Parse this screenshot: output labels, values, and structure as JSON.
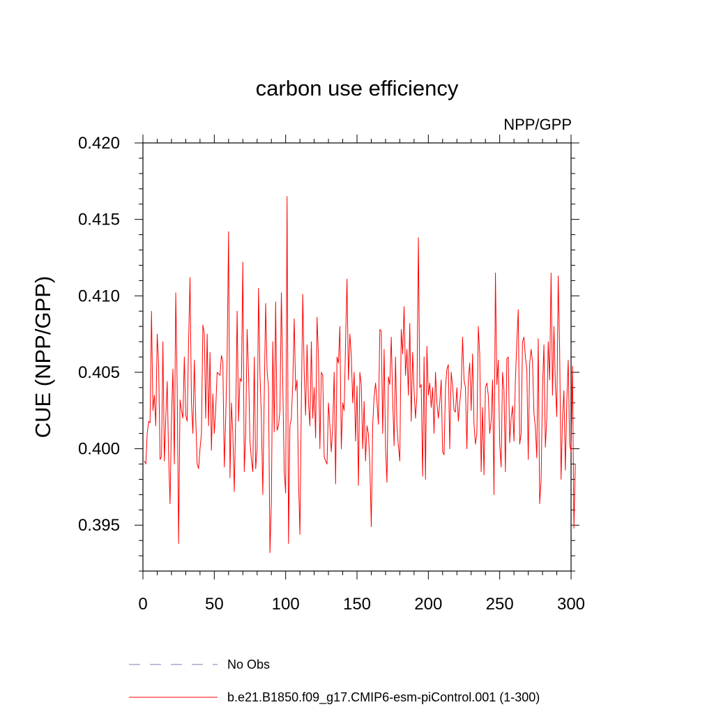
{
  "chart_data": {
    "type": "line",
    "title": "carbon use efficiency",
    "subtitle": "NPP/GPP",
    "xlabel": "",
    "ylabel": "CUE  (NPP/GPP)",
    "xlim": [
      0,
      300
    ],
    "ylim": [
      0.392,
      0.42
    ],
    "xticks": [
      0,
      50,
      100,
      150,
      200,
      250,
      300
    ],
    "xtick_labels": [
      "0",
      "50",
      "100",
      "150",
      "200",
      "250",
      "300"
    ],
    "yticks": [
      0.395,
      0.4,
      0.405,
      0.41,
      0.415,
      0.42
    ],
    "ytick_labels": [
      "0.395",
      "0.400",
      "0.405",
      "0.410",
      "0.415",
      "0.420"
    ],
    "grid": false,
    "legend_position": "bottom",
    "series": [
      {
        "name": "No Obs",
        "color": "#7b7bb0",
        "style": "dashed",
        "values": []
      },
      {
        "name": "b.e21.B1850.f09_g17.CMIP6-esm-piControl.001 (1-300)",
        "color": "#ff0000",
        "style": "solid",
        "x_start": 1,
        "values": [
          0.3992,
          0.399,
          0.401,
          0.4018,
          0.4017,
          0.409,
          0.4025,
          0.4035,
          0.4015,
          0.4075,
          0.4055,
          0.3993,
          0.3995,
          0.407,
          0.3992,
          0.402,
          0.4044,
          0.3995,
          0.3964,
          0.402,
          0.4052,
          0.399,
          0.4102,
          0.404,
          0.3938,
          0.4032,
          0.4025,
          0.402,
          0.406,
          0.4022,
          0.4018,
          0.407,
          0.4112,
          0.403,
          0.401,
          0.4058,
          0.402,
          0.399,
          0.3987,
          0.4,
          0.401,
          0.4081,
          0.4075,
          0.402,
          0.4075,
          0.4015,
          0.4063,
          0.3999,
          0.4036,
          0.401,
          0.4026,
          0.405,
          0.4049,
          0.4048,
          0.4061,
          0.4057,
          0.3988,
          0.402,
          0.406,
          0.4142,
          0.3981,
          0.403,
          0.401,
          0.3972,
          0.402,
          0.409,
          0.4018,
          0.4046,
          0.4044,
          0.4122,
          0.3985,
          0.401,
          0.4078,
          0.405,
          0.4005,
          0.3993,
          0.3985,
          0.406,
          0.3987,
          0.4,
          0.4105,
          0.4049,
          0.402,
          0.397,
          0.4035,
          0.4095,
          0.4051,
          0.404,
          0.3932,
          0.3965,
          0.407,
          0.4011,
          0.4096,
          0.4012,
          0.4015,
          0.4025,
          0.4102,
          0.4042,
          0.3985,
          0.3971,
          0.4165,
          0.3938,
          0.4015,
          0.402,
          0.4043,
          0.4085,
          0.4038,
          0.4045,
          0.398,
          0.3944,
          0.403,
          0.4101,
          0.405,
          0.4022,
          0.4068,
          0.403,
          0.4015,
          0.407,
          0.402,
          0.404,
          0.4007,
          0.4086,
          0.406,
          0.4,
          0.405,
          0.4048,
          0.3995,
          0.3992,
          0.399,
          0.403,
          0.4015,
          0.3998,
          0.4015,
          0.405,
          0.3977,
          0.406,
          0.4056,
          0.408,
          0.4,
          0.403,
          0.4025,
          0.407,
          0.4111,
          0.4045,
          0.4075,
          0.4061,
          0.403,
          0.405,
          0.4005,
          0.4041,
          0.3976,
          0.405,
          0.4042,
          0.4,
          0.4031,
          0.3992,
          0.4015,
          0.401,
          0.399,
          0.3949,
          0.4015,
          0.4034,
          0.4043,
          0.4031,
          0.4016,
          0.4078,
          0.4077,
          0.401,
          0.4065,
          0.4001,
          0.3978,
          0.4047,
          0.4042,
          0.4073,
          0.4032,
          0.4002,
          0.406,
          0.4015,
          0.4002,
          0.3992,
          0.4078,
          0.4062,
          0.4093,
          0.4048,
          0.4065,
          0.4035,
          0.4082,
          0.4018,
          0.4063,
          0.4038,
          0.402,
          0.4035,
          0.4138,
          0.404,
          0.4042,
          0.3982,
          0.406,
          0.398,
          0.4067,
          0.4035,
          0.4043,
          0.4027,
          0.404,
          0.401,
          0.405,
          0.403,
          0.402,
          0.403,
          0.4045,
          0.3998,
          0.3996,
          0.404,
          0.4052,
          0.4055,
          0.4,
          0.405,
          0.4041,
          0.4025,
          0.4024,
          0.404,
          0.4018,
          0.403,
          0.404,
          0.4073,
          0.4045,
          0.404,
          0.4,
          0.4045,
          0.4056,
          0.4025,
          0.4062,
          0.4016,
          0.4003,
          0.401,
          0.408,
          0.4062,
          0.3985,
          0.4027,
          0.3983,
          0.404,
          0.4043,
          0.4035,
          0.401,
          0.4018,
          0.4045,
          0.397,
          0.4115,
          0.4042,
          0.4058,
          0.4003,
          0.3988,
          0.405,
          0.4038,
          0.3985,
          0.4059,
          0.406,
          0.4004,
          0.402,
          0.4028,
          0.4005,
          0.4045,
          0.407,
          0.4091,
          0.4003,
          0.401,
          0.407,
          0.4073,
          0.406,
          0.4052,
          0.3993,
          0.4056,
          0.4065,
          0.4057,
          0.4023,
          0.4014,
          0.3994,
          0.4072,
          0.3964,
          0.3979,
          0.404,
          0.4068,
          0.4001,
          0.402,
          0.407,
          0.4045,
          0.4115,
          0.4035,
          0.408,
          0.4042,
          0.4021,
          0.4113,
          0.4065,
          0.398,
          0.402,
          0.4038,
          0.3986,
          0.403,
          0.4058,
          0.4003,
          0.3998,
          0.4054,
          0.3948,
          0.399
        ]
      }
    ]
  }
}
